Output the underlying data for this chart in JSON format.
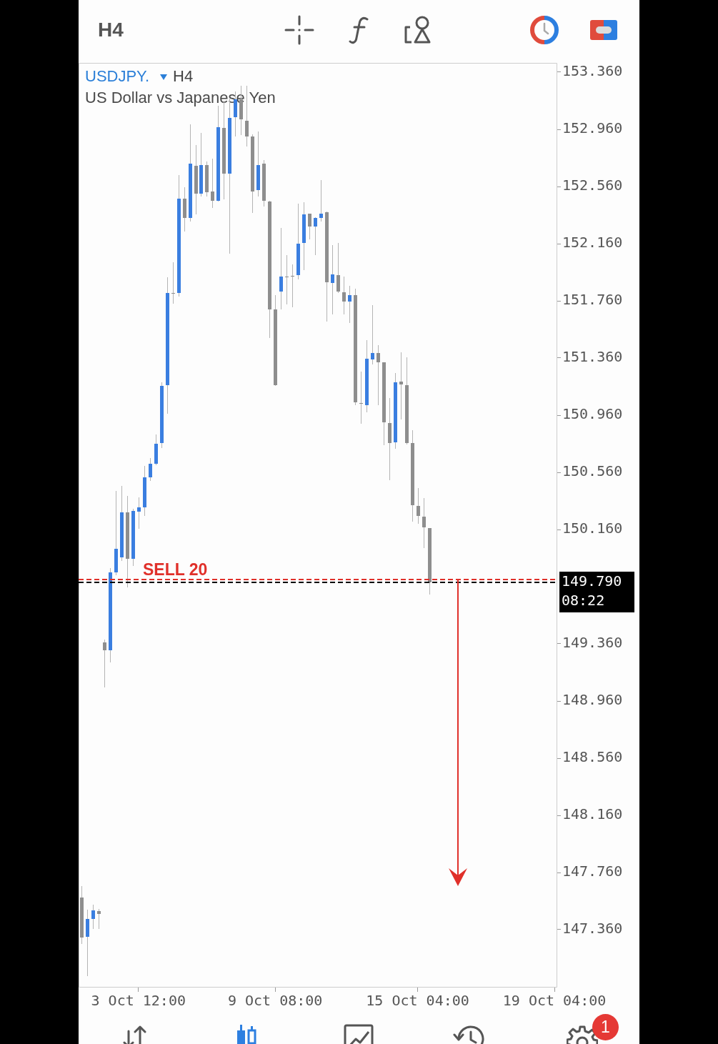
{
  "chart_data": {
    "type": "candlestick",
    "title": "USDJPY.",
    "subtitle": "US Dollar vs Japanese Yen",
    "categories": [
      null,
      null,
      null,
      null,
      null,
      null,
      null,
      null,
      null,
      null,
      "3 Oct 12:00",
      null,
      null,
      null,
      null,
      null,
      null,
      null,
      null,
      null,
      null,
      null,
      null,
      null,
      null,
      null,
      null,
      null,
      null,
      null,
      null,
      null,
      null,
      null,
      "9 Oct 08:00",
      null,
      null,
      null,
      null,
      null,
      null,
      null,
      null,
      null,
      null,
      null,
      null,
      null,
      null,
      null,
      null,
      null,
      null,
      null,
      null,
      null,
      null,
      null,
      null,
      "15 Oct 04:00",
      null,
      null,
      null,
      null,
      null,
      null,
      null,
      null,
      null,
      null,
      null,
      null,
      null,
      null,
      null,
      null,
      null,
      null,
      null,
      null,
      null,
      null,
      null,
      "19 Oct 04:00"
    ],
    "ohlc": [
      [
        147.585,
        147.665,
        147.26,
        147.305
      ],
      [
        147.31,
        147.5,
        147.035,
        147.435
      ],
      [
        147.435,
        147.535,
        147.365,
        147.495
      ],
      [
        147.49,
        147.505,
        147.365,
        147.47
      ],
      [
        149.37,
        149.39,
        149.055,
        149.315
      ],
      [
        149.315,
        149.89,
        149.23,
        149.86
      ],
      [
        149.86,
        150.43,
        149.84,
        150.025
      ],
      [
        149.965,
        150.465,
        149.94,
        150.28
      ],
      [
        150.28,
        150.395,
        149.755,
        149.955
      ],
      [
        149.955,
        150.305,
        149.905,
        150.29
      ],
      [
        150.285,
        150.385,
        150.165,
        150.315
      ],
      [
        150.315,
        150.605,
        150.255,
        150.525
      ],
      [
        150.525,
        150.66,
        150.5,
        150.62
      ],
      [
        150.62,
        150.825,
        150.61,
        150.76
      ],
      [
        150.765,
        151.19,
        150.73,
        151.165
      ],
      [
        151.17,
        151.925,
        150.97,
        151.815
      ],
      [
        151.815,
        152.03,
        151.74,
        151.81
      ],
      [
        151.815,
        152.64,
        151.79,
        152.475
      ],
      [
        152.475,
        152.555,
        152.245,
        152.34
      ],
      [
        152.34,
        152.995,
        152.315,
        152.72
      ],
      [
        152.705,
        152.85,
        152.365,
        152.51
      ],
      [
        152.51,
        152.935,
        152.49,
        152.71
      ],
      [
        152.71,
        152.735,
        152.49,
        152.52
      ],
      [
        152.525,
        152.755,
        152.41,
        152.46
      ],
      [
        152.46,
        153.125,
        152.455,
        152.975
      ],
      [
        152.97,
        153.16,
        152.47,
        152.65
      ],
      [
        152.65,
        153.175,
        152.09,
        153.04
      ],
      [
        153.045,
        153.225,
        152.91,
        153.17
      ],
      [
        153.17,
        153.265,
        152.92,
        153.03
      ],
      [
        153.02,
        153.265,
        152.84,
        152.91
      ],
      [
        152.91,
        152.925,
        152.375,
        152.525
      ],
      [
        152.535,
        152.945,
        152.49,
        152.71
      ],
      [
        152.72,
        152.745,
        152.42,
        152.46
      ],
      [
        152.455,
        152.46,
        151.5,
        151.7
      ],
      [
        151.7,
        151.8,
        151.165,
        151.17
      ],
      [
        151.825,
        152.27,
        151.7,
        151.93
      ],
      [
        151.93,
        152.08,
        151.735,
        151.93
      ],
      [
        151.935,
        152.015,
        151.715,
        151.935
      ],
      [
        151.94,
        152.44,
        151.91,
        152.16
      ],
      [
        152.165,
        152.45,
        151.975,
        152.365
      ],
      [
        152.37,
        152.37,
        152.19,
        152.28
      ],
      [
        152.28,
        152.345,
        152.08,
        152.34
      ],
      [
        152.34,
        152.605,
        152.315,
        152.37
      ],
      [
        152.38,
        152.385,
        151.615,
        151.89
      ],
      [
        151.885,
        152.15,
        151.665,
        151.945
      ],
      [
        151.94,
        152.165,
        151.815,
        151.825
      ],
      [
        151.82,
        151.93,
        151.665,
        151.755
      ],
      [
        151.755,
        151.865,
        151.605,
        151.8
      ],
      [
        151.8,
        151.845,
        151.03,
        151.05
      ],
      [
        151.045,
        151.265,
        150.9,
        151.04
      ],
      [
        151.03,
        151.485,
        150.98,
        151.355
      ],
      [
        151.35,
        151.73,
        151.315,
        151.395
      ],
      [
        151.395,
        151.45,
        151.03,
        151.33
      ],
      [
        151.33,
        151.33,
        150.75,
        150.91
      ],
      [
        150.905,
        151.08,
        150.505,
        150.765
      ],
      [
        150.77,
        151.255,
        150.725,
        151.19
      ],
      [
        151.195,
        151.4,
        150.93,
        151.175
      ],
      [
        151.17,
        151.365,
        150.755,
        150.765
      ],
      [
        150.765,
        150.855,
        150.215,
        150.33
      ],
      [
        150.325,
        150.45,
        150.2,
        150.255
      ],
      [
        150.25,
        150.38,
        150.03,
        150.175
      ],
      [
        150.17,
        150.17,
        149.705,
        149.79
      ],
      null,
      null,
      null,
      null,
      null,
      null,
      null,
      null,
      null,
      null,
      null,
      null,
      null,
      null,
      null,
      null,
      null,
      null,
      null,
      null,
      null,
      null
    ],
    "colors": [
      "#8e8e8e",
      "#3a7ee0",
      "#3a7ee0",
      "#8e8e8e",
      "#8e8e8e",
      "#3a7ee0",
      "#3a7ee0",
      "#3a7ee0",
      "#8e8e8e",
      "#3a7ee0",
      "#3a7ee0",
      "#3a7ee0",
      "#3a7ee0",
      "#3a7ee0",
      "#3a7ee0",
      "#3a7ee0",
      "#8e8e8e",
      "#3a7ee0",
      "#8e8e8e",
      "#3a7ee0",
      "#8e8e8e",
      "#3a7ee0",
      "#8e8e8e",
      "#8e8e8e",
      "#3a7ee0",
      "#8e8e8e",
      "#3a7ee0",
      "#3a7ee0",
      "#8e8e8e",
      "#8e8e8e",
      "#8e8e8e",
      "#3a7ee0",
      "#8e8e8e",
      "#8e8e8e",
      "#8e8e8e",
      "#3a7ee0",
      "#8e8e8e",
      "#8e8e8e",
      "#3a7ee0",
      "#3a7ee0",
      "#8e8e8e",
      "#3a7ee0",
      "#3a7ee0",
      "#8e8e8e",
      "#3a7ee0",
      "#8e8e8e",
      "#8e8e8e",
      "#3a7ee0",
      "#8e8e8e",
      "#8e8e8e",
      "#3a7ee0",
      "#3a7ee0",
      "#8e8e8e",
      "#8e8e8e",
      "#8e8e8e",
      "#3a7ee0",
      "#8e8e8e",
      "#8e8e8e",
      "#8e8e8e",
      "#8e8e8e",
      "#8e8e8e",
      "#8e8e8e",
      null,
      null,
      null,
      null,
      null,
      null,
      null,
      null,
      null,
      null,
      null,
      null,
      null,
      null,
      null,
      null,
      null,
      null,
      null,
      null,
      null,
      null
    ],
    "ylim": [
      146.955,
      153.425
    ],
    "yticks": [
      {
        "value": 147.36,
        "label": "147.360"
      },
      {
        "value": 147.76,
        "label": "147.760"
      },
      {
        "value": 148.16,
        "label": "148.160"
      },
      {
        "value": 148.56,
        "label": "148.560"
      },
      {
        "value": 148.96,
        "label": "148.960"
      },
      {
        "value": 149.36,
        "label": "149.360"
      },
      {
        "value": 150.16,
        "label": "150.160"
      },
      {
        "value": 150.56,
        "label": "150.560"
      },
      {
        "value": 150.96,
        "label": "150.960"
      },
      {
        "value": 151.36,
        "label": "151.360"
      },
      {
        "value": 151.76,
        "label": "151.760"
      },
      {
        "value": 152.16,
        "label": "152.160"
      },
      {
        "value": 152.56,
        "label": "152.560"
      },
      {
        "value": 152.96,
        "label": "152.960"
      },
      {
        "value": 153.36,
        "label": "153.360"
      }
    ],
    "ref_lines": [
      {
        "axis": "y",
        "value": 149.81,
        "label": "SELL 20",
        "color": "#e0302a",
        "line_style": "dashed"
      },
      {
        "axis": "y",
        "value": 149.79,
        "label": "149.790",
        "color": "#000000",
        "line_style": "dashed"
      }
    ],
    "annotations": [
      "H4",
      "H4",
      "08:22",
      "1"
    ]
  }
}
